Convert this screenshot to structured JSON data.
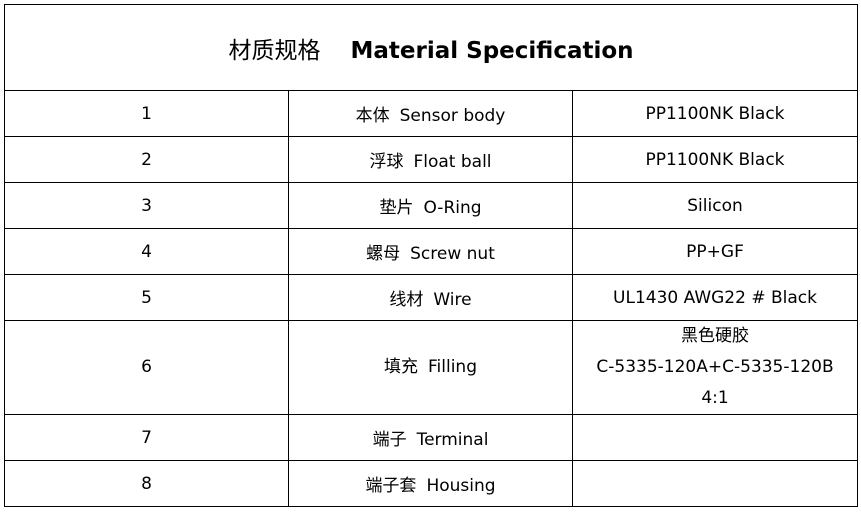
{
  "title": {
    "cn": "材质规格",
    "en": "Material Specification"
  },
  "rows": [
    {
      "no": "1",
      "part_cn": "本体",
      "part_en": "Sensor body",
      "material": [
        "PP1100NK Black"
      ]
    },
    {
      "no": "2",
      "part_cn": "浮球",
      "part_en": "Float ball",
      "material": [
        "PP1100NK Black"
      ]
    },
    {
      "no": "3",
      "part_cn": "垫片",
      "part_en": "O-Ring",
      "material": [
        "Silicon"
      ]
    },
    {
      "no": "4",
      "part_cn": "螺母",
      "part_en": "Screw nut",
      "material": [
        "PP+GF"
      ]
    },
    {
      "no": "5",
      "part_cn": "线材",
      "part_en": "Wire",
      "material": [
        "UL1430 AWG22 # Black"
      ]
    },
    {
      "no": "6",
      "part_cn": "填充",
      "part_en": "Filling",
      "material": [
        "黑色硬胶",
        "C-5335-120A+C-5335-120B",
        "4:1"
      ]
    },
    {
      "no": "7",
      "part_cn": "端子",
      "part_en": "Terminal",
      "material": []
    },
    {
      "no": "8",
      "part_cn": "端子套",
      "part_en": "Housing",
      "material": []
    }
  ]
}
